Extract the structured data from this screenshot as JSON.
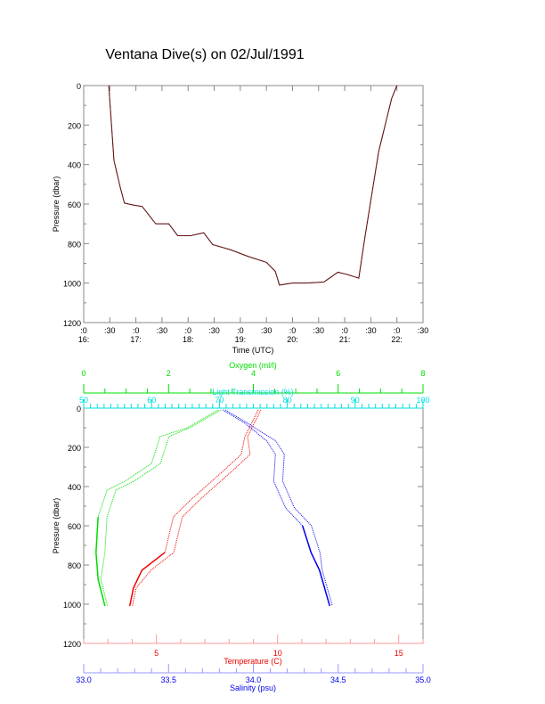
{
  "title": "Ventana Dive(s) on 02/Jul/1991",
  "chart_data": [
    {
      "type": "line",
      "ylabel": "Pressure (dbar)",
      "xlabel": "Time (UTC)",
      "ylim": [
        1200,
        0
      ],
      "yticks": [
        0,
        200,
        400,
        600,
        800,
        1000,
        1200
      ],
      "xlim": [
        16.0,
        22.5
      ],
      "xtick_labels_top": [
        ":0",
        ":30",
        ":0",
        ":30",
        ":0",
        ":30",
        ":0",
        ":30",
        ":0",
        ":30",
        ":0",
        ":30",
        ":0",
        ":30"
      ],
      "xtick_labels_bottom": [
        "16:",
        "17:",
        "18:",
        "19:",
        "20:",
        "21:",
        "22:"
      ],
      "series": [
        {
          "name": "pressure",
          "color": "#cc2222",
          "x": [
            16.48,
            16.58,
            16.7,
            16.78,
            16.95,
            17.12,
            17.38,
            17.63,
            17.8,
            18.05,
            18.3,
            18.47,
            18.8,
            19.15,
            19.5,
            19.67,
            19.75,
            20.0,
            20.27,
            20.6,
            20.87,
            21.03,
            21.27,
            21.38,
            21.65,
            21.9,
            22.0
          ],
          "y": [
            0,
            380,
            515,
            595,
            605,
            612,
            700,
            700,
            760,
            760,
            745,
            805,
            830,
            865,
            895,
            940,
            1010,
            1000,
            1000,
            995,
            945,
            955,
            975,
            780,
            335,
            65,
            0
          ]
        }
      ]
    },
    {
      "type": "line",
      "ylabel": "Pressure (dbar)",
      "ylim": [
        1200,
        0
      ],
      "yticks": [
        0,
        200,
        400,
        600,
        800,
        1000,
        1200
      ],
      "axes": {
        "oxygen": {
          "label": "Oxygen (ml/l)",
          "range": [
            0,
            8
          ],
          "ticks": [
            "0",
            "2",
            "4",
            "6",
            "8"
          ],
          "color": "#00dd00"
        },
        "light": {
          "label": "Light Transmission (%)",
          "range": [
            50,
            100
          ],
          "ticks": [
            "50",
            "60",
            "70",
            "80",
            "90",
            "100"
          ],
          "color": "#00e0e0"
        },
        "temperature": {
          "label": "Temperature (C)",
          "range": [
            2,
            16
          ],
          "ticks": [
            "5",
            "10",
            "15"
          ],
          "color": "#ee0000"
        },
        "salinity": {
          "label": "Salinity (psu)",
          "range": [
            33,
            35
          ],
          "ticks": [
            "33.0",
            "33.5",
            "34.0",
            "34.5",
            "35.0"
          ],
          "color": "#0000ee"
        }
      },
      "series": [
        {
          "name": "Temperature",
          "axis": "temperature",
          "x": [
            9.2,
            8.65,
            8.5,
            7.7,
            6.45,
            5.7,
            5.35,
            4.4,
            4.05,
            3.9
          ],
          "y": [
            9,
            145,
            236,
            327,
            464,
            555,
            736,
            827,
            918,
            1009
          ]
        },
        {
          "name": "Salinity",
          "axis": "salinity",
          "x": [
            33.82,
            33.95,
            34.08,
            34.13,
            34.12,
            34.19,
            34.29,
            34.34,
            34.39,
            34.45
          ],
          "y": [
            9,
            77,
            168,
            236,
            373,
            509,
            600,
            736,
            827,
            1009
          ]
        },
        {
          "name": "Oxygen",
          "axis": "oxygen",
          "x": [
            3.17,
            2.44,
            1.8,
            1.6,
            0.97,
            0.55,
            0.34,
            0.29,
            0.34,
            0.5
          ],
          "y": [
            9,
            100,
            145,
            282,
            373,
            418,
            555,
            736,
            873,
            1009
          ]
        }
      ]
    }
  ]
}
